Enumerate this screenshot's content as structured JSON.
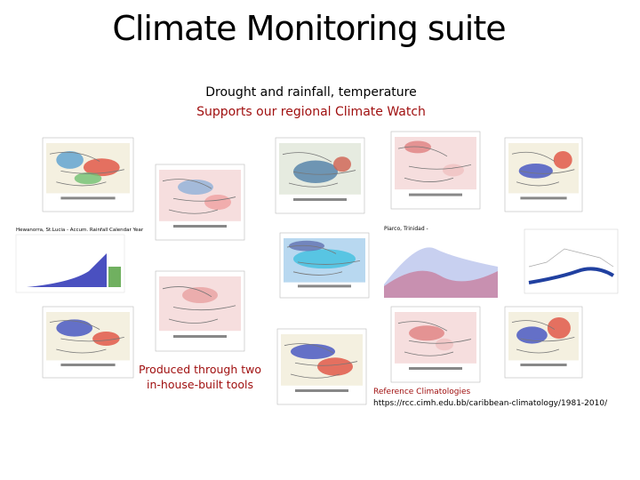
{
  "title": "Climate Monitoring suite",
  "subtitle": {
    "line1": "Drought and rainfall, temperature",
    "line2": "Supports our regional Climate Watch"
  },
  "caption": {
    "lines": [
      "Produced through two",
      "in-house-built tools"
    ]
  },
  "reference": {
    "title": "Reference Climatologies",
    "url": "https://rcc.cimh.edu.bb/caribbean-climatology/1981-2010/"
  },
  "thumbnails": {
    "rainfall_chart_title": "Hewanorra, St.Lucia - Accum. Rainfall Calendar Year",
    "temperature_chart_title": "Piarco, Trinidad -"
  }
}
